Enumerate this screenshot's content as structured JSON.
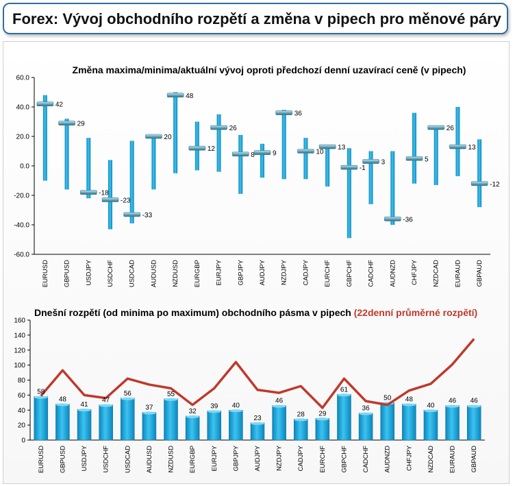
{
  "header": {
    "title": "Forex: Vývoj obchodního rozpětí a změna v pipech pro měnové páry"
  },
  "colors": {
    "bar": "#1aa3d9",
    "bar_dark": "#0b7fb3",
    "line": "#c0392b",
    "header_border": "#2e6da4",
    "subtitle_red": "#c0392b"
  },
  "chart_data": [
    {
      "type": "range",
      "title": "Změna maxima/minima/aktuální vývoj oproti předchozí denní uzavírací ceně (v pipech)",
      "categories": [
        "EURUSD",
        "GBPUSD",
        "USDJPY",
        "USDCHF",
        "USDCAD",
        "AUDUSD",
        "NZDUSD",
        "EURGBP",
        "EURJPY",
        "GBPJPY",
        "AUDJPY",
        "NZDJPY",
        "CADJPY",
        "EURCHF",
        "GBPCHF",
        "CADCHF",
        "AUDNZD",
        "CHFJPY",
        "NZDCAD",
        "EURAUD",
        "GBPAUD"
      ],
      "high": [
        48,
        32,
        19,
        4,
        17,
        20,
        50,
        30,
        35,
        21,
        15,
        38,
        19,
        14,
        12,
        10,
        10,
        36,
        27,
        40,
        18
      ],
      "low": [
        -10,
        -16,
        -22,
        -43,
        -39,
        -16,
        -5,
        -3,
        -4,
        -19,
        -8,
        -9,
        -9,
        -14,
        -49,
        -26,
        -40,
        -12,
        -13,
        -7,
        -28
      ],
      "current": [
        42,
        29,
        -18,
        -23,
        -33,
        20,
        48,
        12,
        26,
        8,
        9,
        36,
        10,
        13,
        -1,
        3,
        -36,
        5,
        26,
        13,
        -12
      ],
      "ylim": [
        -60,
        60
      ],
      "yticks": [
        "60.0",
        "40.0",
        "20.0",
        "0.0",
        "-20.0",
        "-40.0",
        "-60.0"
      ]
    },
    {
      "type": "bar+line",
      "title": "Dnešní rozpětí (od minima po maximum) obchodního pásma v pipech",
      "title_highlight": "(22denní průměrné rozpětí)",
      "categories": [
        "EURUSD",
        "GBPUSD",
        "USDJPY",
        "USDCHF",
        "USDCAD",
        "AUDUSD",
        "NZDUSD",
        "EURGBP",
        "EURJPY",
        "GBPJPY",
        "AUDJPY",
        "NZDJPY",
        "CADJPY",
        "EURCHF",
        "GBPCHF",
        "CADCHF",
        "AUDNZD",
        "CHFJPY",
        "NZDCAD",
        "EURAUD",
        "GBPAUD"
      ],
      "bar_values": [
        58,
        48,
        41,
        47,
        56,
        37,
        55,
        32,
        39,
        40,
        23,
        46,
        28,
        29,
        61,
        36,
        50,
        48,
        40,
        46,
        46
      ],
      "line_values": [
        59,
        93,
        60,
        56,
        82,
        74,
        69,
        47,
        69,
        104,
        67,
        63,
        72,
        43,
        82,
        52,
        47,
        66,
        75,
        101,
        135
      ],
      "ylim": [
        0,
        160
      ],
      "yticks": [
        "160",
        "140",
        "120",
        "100",
        "80",
        "60",
        "40",
        "20",
        "0"
      ]
    }
  ]
}
